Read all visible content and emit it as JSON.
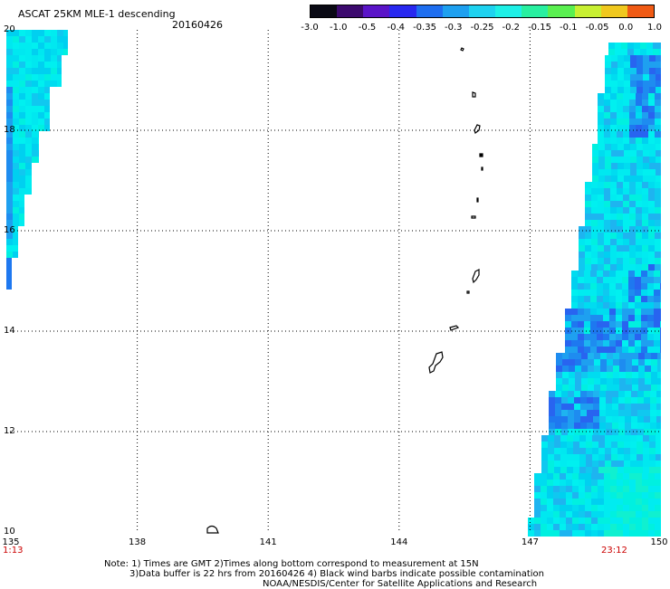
{
  "header": {
    "title": "ASCAT 25KM MLE-1 descending",
    "date": "20160426"
  },
  "colorbar": {
    "labels": [
      "-3.0",
      "-1.0",
      "-0.5",
      "-0.4",
      "-0.35",
      "-0.3",
      "-0.25",
      "-0.2",
      "-0.15",
      "-0.1",
      "-0.05",
      "0.0",
      "1.0"
    ],
    "colors": [
      "#0a0a14",
      "#3c0a6e",
      "#5a14c8",
      "#2828f0",
      "#1e6ef0",
      "#1ea0f0",
      "#1ed2f0",
      "#1ef0e6",
      "#28f0a0",
      "#5af050",
      "#c8f032",
      "#f0c81e",
      "#f05a14"
    ]
  },
  "axes": {
    "lon_labels": [
      "135",
      "138",
      "141",
      "144",
      "147",
      "150"
    ],
    "lat_labels": [
      "20",
      "18",
      "16",
      "14",
      "12",
      "10"
    ]
  },
  "times": {
    "start": "1:13",
    "end": "23:12"
  },
  "notes": {
    "line1": "Note: 1) Times are GMT 2)Times along bottom correspond to measurement at 15N",
    "line2": "3)Data buffer is 22 hrs from 20160426 4) Black wind barbs indicate possible contamination",
    "line3": "NOAA/NESDIS/Center for Satellite Applications and Research"
  }
}
